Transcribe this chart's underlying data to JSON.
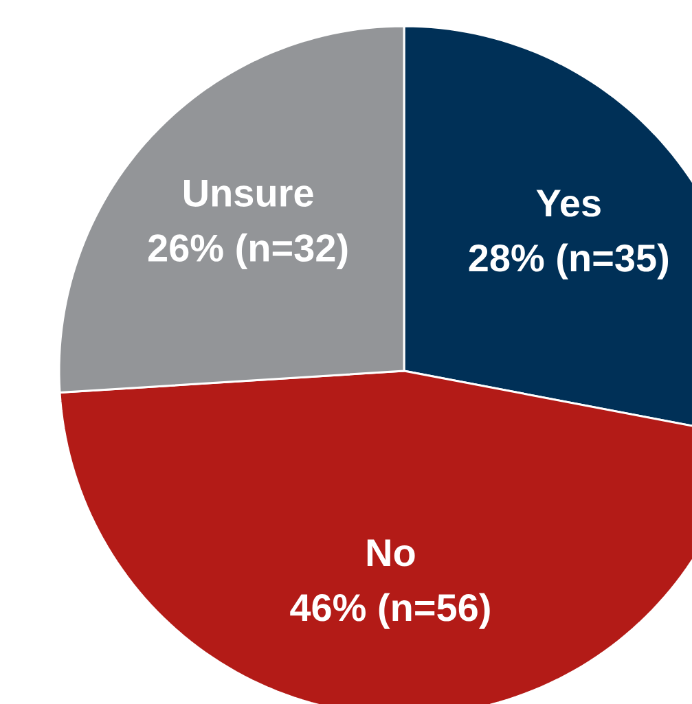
{
  "chart_data": {
    "type": "pie",
    "categories": [
      "Yes",
      "No",
      "Unsure"
    ],
    "values": [
      28,
      46,
      26
    ],
    "colors": [
      "#003057",
      "#b31b17",
      "#939598"
    ],
    "value_labels": [
      "28% (n=35)",
      "46% (n=56)",
      "26% (n=32)"
    ]
  }
}
